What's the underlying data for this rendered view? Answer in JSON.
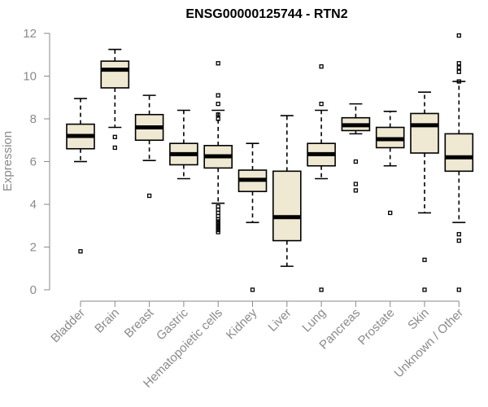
{
  "chart_data": {
    "type": "box",
    "title": "ENSG00000125744 - RTN2",
    "xlabel": "",
    "ylabel": "Expression",
    "ylim": [
      0,
      12
    ],
    "yticks": [
      "0",
      "2",
      "4",
      "6",
      "8",
      "10",
      "12"
    ],
    "grid": false,
    "legend": "none",
    "colors": {
      "box_fill": "#efe8d2",
      "box_stroke": "#000000",
      "axis": "#8a8a8a"
    },
    "categories": [
      "Bladder",
      "Brain",
      "Breast",
      "Gastric",
      "Hematopoietic cells",
      "Kidney",
      "Liver",
      "Lung",
      "Pancreas",
      "Prostate",
      "Skin",
      "Unknown / Other"
    ],
    "boxes": [
      {
        "category": "Bladder",
        "whisker_low": 6.0,
        "q1": 6.6,
        "median": 7.2,
        "q3": 7.75,
        "whisker_high": 8.95,
        "outliers": [
          1.8
        ]
      },
      {
        "category": "Brain",
        "whisker_low": 7.6,
        "q1": 9.45,
        "median": 10.3,
        "q3": 10.7,
        "whisker_high": 11.25,
        "outliers": [
          7.15,
          6.65
        ]
      },
      {
        "category": "Breast",
        "whisker_low": 6.05,
        "q1": 7.0,
        "median": 7.6,
        "q3": 8.2,
        "whisker_high": 9.1,
        "outliers": [
          4.4
        ]
      },
      {
        "category": "Gastric",
        "whisker_low": 5.2,
        "q1": 5.85,
        "median": 6.35,
        "q3": 6.85,
        "whisker_high": 8.4,
        "outliers": []
      },
      {
        "category": "Hematopoietic cells",
        "whisker_low": 4.05,
        "q1": 5.7,
        "median": 6.25,
        "q3": 6.75,
        "whisker_high": 8.4,
        "outliers": [
          10.6,
          9.1,
          8.7,
          8.2,
          8.0,
          3.9,
          3.75,
          3.6,
          3.45,
          3.3,
          3.2,
          3.1,
          3.0,
          2.9,
          2.8,
          2.7
        ]
      },
      {
        "category": "Kidney",
        "whisker_low": 3.15,
        "q1": 4.6,
        "median": 5.15,
        "q3": 5.6,
        "whisker_high": 6.85,
        "outliers": [
          0
        ]
      },
      {
        "category": "Liver",
        "whisker_low": 1.1,
        "q1": 2.3,
        "median": 3.4,
        "q3": 5.55,
        "whisker_high": 8.15,
        "outliers": []
      },
      {
        "category": "Lung",
        "whisker_low": 5.2,
        "q1": 5.8,
        "median": 6.35,
        "q3": 6.85,
        "whisker_high": 8.4,
        "outliers": [
          10.45,
          8.7,
          0
        ]
      },
      {
        "category": "Pancreas",
        "whisker_low": 7.3,
        "q1": 7.45,
        "median": 7.7,
        "q3": 8.05,
        "whisker_high": 8.7,
        "outliers": [
          6.0,
          4.95,
          4.65
        ]
      },
      {
        "category": "Prostate",
        "whisker_low": 5.8,
        "q1": 6.65,
        "median": 7.05,
        "q3": 7.6,
        "whisker_high": 8.35,
        "outliers": [
          3.6
        ]
      },
      {
        "category": "Skin",
        "whisker_low": 3.6,
        "q1": 6.4,
        "median": 7.7,
        "q3": 8.25,
        "whisker_high": 9.25,
        "outliers": [
          1.4,
          0
        ]
      },
      {
        "category": "Unknown / Other",
        "whisker_low": 3.15,
        "q1": 5.55,
        "median": 6.2,
        "q3": 7.3,
        "whisker_high": 9.75,
        "outliers": [
          11.9,
          10.6,
          10.4,
          10.2,
          9.75,
          2.6,
          2.3,
          0
        ]
      }
    ]
  }
}
